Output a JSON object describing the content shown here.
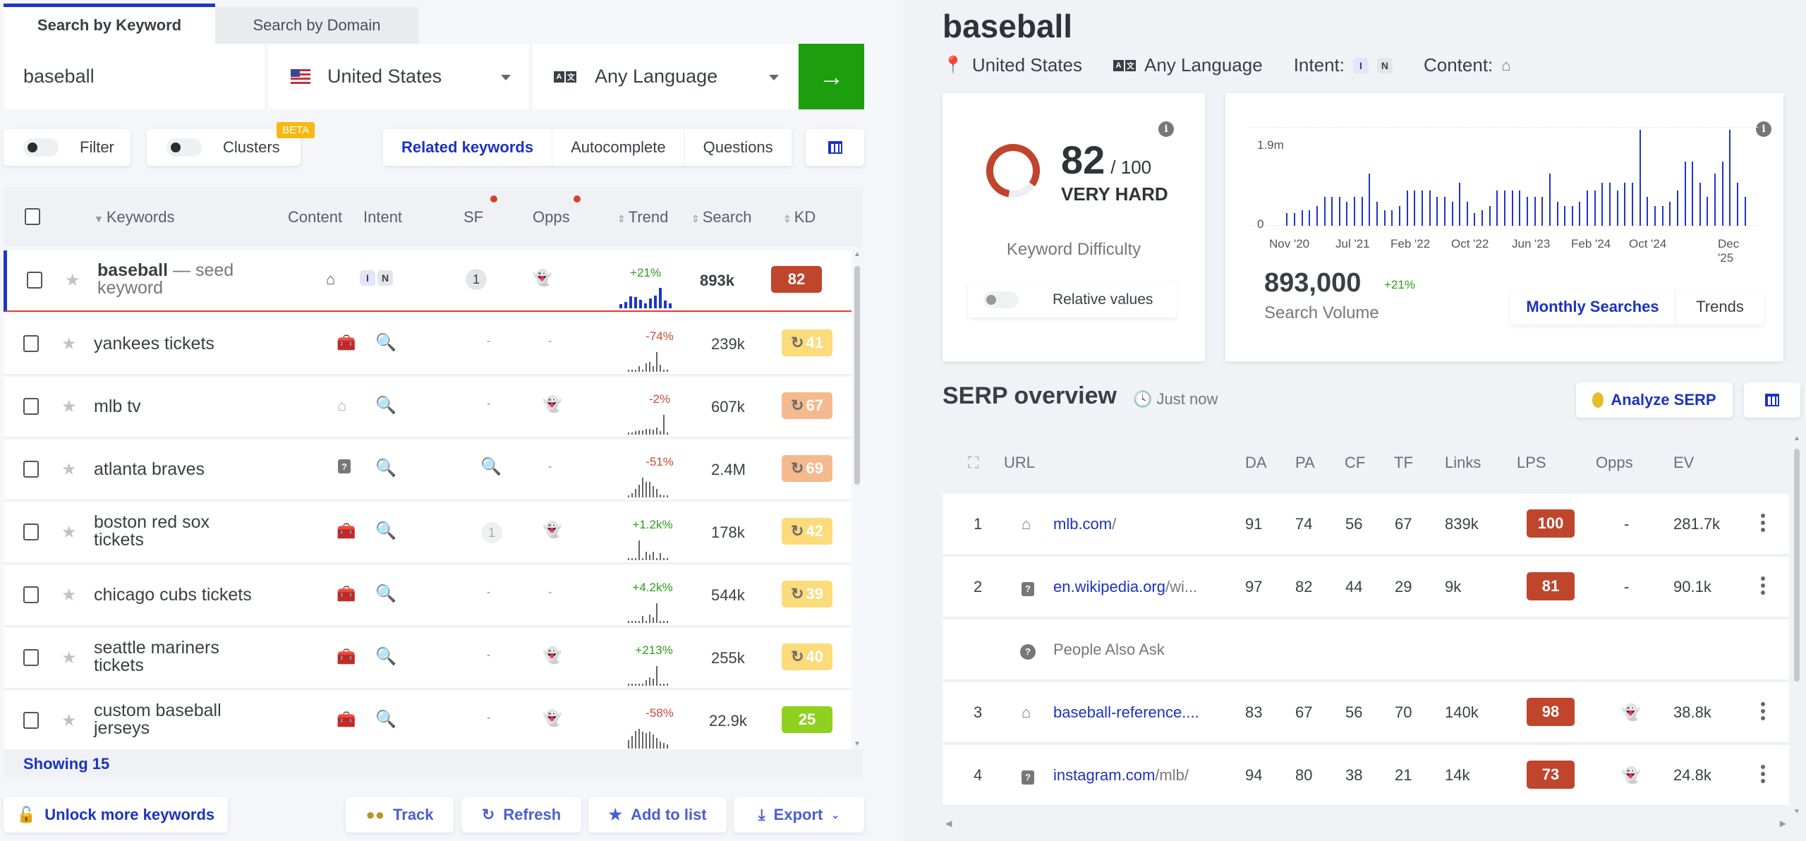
{
  "search_tabs": [
    {
      "label": "Search by Keyword",
      "active": true
    },
    {
      "label": "Search by Domain",
      "active": false
    }
  ],
  "search": {
    "keyword": "baseball",
    "country": "United States",
    "language": "Any Language",
    "go_icon": "arrow-right-icon"
  },
  "filters": {
    "filter_label": "Filter",
    "clusters_label": "Clusters",
    "beta_badge": "BETA",
    "segments": [
      "Related keywords",
      "Autocomplete",
      "Questions"
    ],
    "active_segment": "Related keywords"
  },
  "table": {
    "headers": {
      "keywords": "Keywords",
      "content": "Content",
      "intent": "Intent",
      "sf": "SF",
      "opps": "Opps",
      "trend": "Trend",
      "search": "Search",
      "kd": "KD"
    },
    "rows": [
      {
        "keyword": "baseball",
        "suffix": " — seed keyword",
        "content": "home",
        "intent": [
          "I",
          "N"
        ],
        "sf": "1",
        "opps": "ghost",
        "trend": "+21%",
        "search": "893k",
        "kd": "82",
        "kd_color": "#bf452c",
        "refresh": false
      },
      {
        "keyword": "yankees tickets",
        "content": "toolbox",
        "intent": "search",
        "sf": "-",
        "opps": "-",
        "trend": "-74%",
        "search": "239k",
        "kd": "41",
        "kd_color": "#fcdb7b",
        "refresh": true
      },
      {
        "keyword": "mlb tv",
        "content": "home",
        "intent": "search",
        "sf": "-",
        "opps": "ghost",
        "trend": "-2%",
        "search": "607k",
        "kd": "67",
        "kd_color": "#f5b98e",
        "refresh": true
      },
      {
        "keyword": "atlanta braves",
        "content": "question",
        "intent": "search",
        "sf": "search",
        "opps": "-",
        "trend": "-51%",
        "search": "2.4M",
        "kd": "69",
        "kd_color": "#f5b98e",
        "refresh": true
      },
      {
        "keyword": "boston red sox tickets",
        "content": "toolbox",
        "intent": "search",
        "sf": "1",
        "opps": "ghost",
        "trend": "+1.2k%",
        "search": "178k",
        "kd": "42",
        "kd_color": "#fcdb7b",
        "refresh": true
      },
      {
        "keyword": "chicago cubs tickets",
        "content": "toolbox",
        "intent": "search",
        "sf": "-",
        "opps": "-",
        "trend": "+4.2k%",
        "search": "544k",
        "kd": "39",
        "kd_color": "#fcdb7b",
        "refresh": true
      },
      {
        "keyword": "seattle mariners tickets",
        "content": "toolbox",
        "intent": "search",
        "sf": "-",
        "opps": "ghost",
        "trend": "+213%",
        "search": "255k",
        "kd": "40",
        "kd_color": "#fcdb7b",
        "refresh": true
      },
      {
        "keyword": "custom baseball jerseys",
        "content": "toolbox",
        "intent": "search",
        "sf": "-",
        "opps": "ghost",
        "trend": "-58%",
        "search": "22.9k",
        "kd": "25",
        "kd_color": "#8fd11e",
        "refresh": false
      }
    ],
    "showing": "Showing 15"
  },
  "bottom_actions": {
    "unlock": "Unlock more keywords",
    "track": "Track",
    "refresh": "Refresh",
    "add_to_list": "Add to list",
    "export": "Export"
  },
  "detail": {
    "title": "baseball",
    "location": "United States",
    "language": "Any Language",
    "intent_label": "Intent:",
    "intent_pills": [
      "I",
      "N"
    ],
    "content_label": "Content:",
    "kd": {
      "value": "82",
      "max": "/ 100",
      "level": "VERY HARD",
      "label": "Keyword Difficulty",
      "relative_toggle": "Relative values",
      "color": "#bf452c"
    },
    "volume": {
      "value": "893,000",
      "change": "+21%",
      "label": "Search Volume",
      "tabs": [
        "Monthly Searches",
        "Trends"
      ],
      "active_tab": "Monthly Searches"
    }
  },
  "chart_data": {
    "type": "bar",
    "title": "Monthly Searches",
    "xlabel": "",
    "ylabel": "",
    "ytick_labels": [
      "0",
      "1.9m"
    ],
    "xtick_labels": [
      "Nov '20",
      "Jul '21",
      "Feb '22",
      "Oct '22",
      "Jun '23",
      "Feb '24",
      "Oct '24",
      "Dec '25"
    ],
    "grid": true,
    "series": [
      {
        "name": "Monthly Searches",
        "color": "#1f36c8",
        "values": [
          303000,
          303000,
          369000,
          369000,
          452000,
          672000,
          672000,
          672000,
          551000,
          672000,
          672000,
          1223000,
          551000,
          369000,
          369000,
          452000,
          826000,
          826000,
          826000,
          826000,
          672000,
          672000,
          551000,
          1008000,
          551000,
          303000,
          369000,
          452000,
          826000,
          826000,
          826000,
          826000,
          672000,
          672000,
          672000,
          1223000,
          551000,
          452000,
          452000,
          551000,
          826000,
          826000,
          1008000,
          1008000,
          826000,
          1008000,
          1008000,
          2241000,
          672000,
          452000,
          452000,
          551000,
          826000,
          1498000,
          1498000,
          1008000,
          672000,
          1223000,
          1498000,
          2241000,
          1008000,
          672000
        ]
      }
    ],
    "ylim": [
      0,
      2300000
    ]
  },
  "serp": {
    "title": "SERP overview",
    "timestamp": "Just now",
    "analyze_button": "Analyze SERP",
    "headers": [
      "URL",
      "DA",
      "PA",
      "CF",
      "TF",
      "Links",
      "LPS",
      "Opps",
      "EV"
    ],
    "rows": [
      {
        "rank": "1",
        "icon": "home",
        "domain": "mlb.com",
        "path": "/",
        "da": "91",
        "pa": "74",
        "cf": "56",
        "tf": "67",
        "links": "839k",
        "lps": "100",
        "opps": "-",
        "ev": "281.7k"
      },
      {
        "rank": "2",
        "icon": "question",
        "domain": "en.wikipedia.org",
        "path": "/wi...",
        "da": "97",
        "pa": "82",
        "cf": "44",
        "tf": "29",
        "links": "9k",
        "lps": "81",
        "opps": "-",
        "ev": "90.1k"
      },
      {
        "paa": "People Also Ask"
      },
      {
        "rank": "3",
        "icon": "home",
        "domain": "baseball-reference....",
        "path": "",
        "da": "83",
        "pa": "67",
        "cf": "56",
        "tf": "70",
        "links": "140k",
        "lps": "98",
        "opps": "ghost",
        "ev": "38.8k"
      },
      {
        "rank": "4",
        "icon": "question",
        "domain": "instagram.com",
        "path": "/mlb/",
        "da": "94",
        "pa": "80",
        "cf": "38",
        "tf": "21",
        "links": "14k",
        "lps": "73",
        "opps": "ghost",
        "ev": "24.8k"
      }
    ]
  }
}
